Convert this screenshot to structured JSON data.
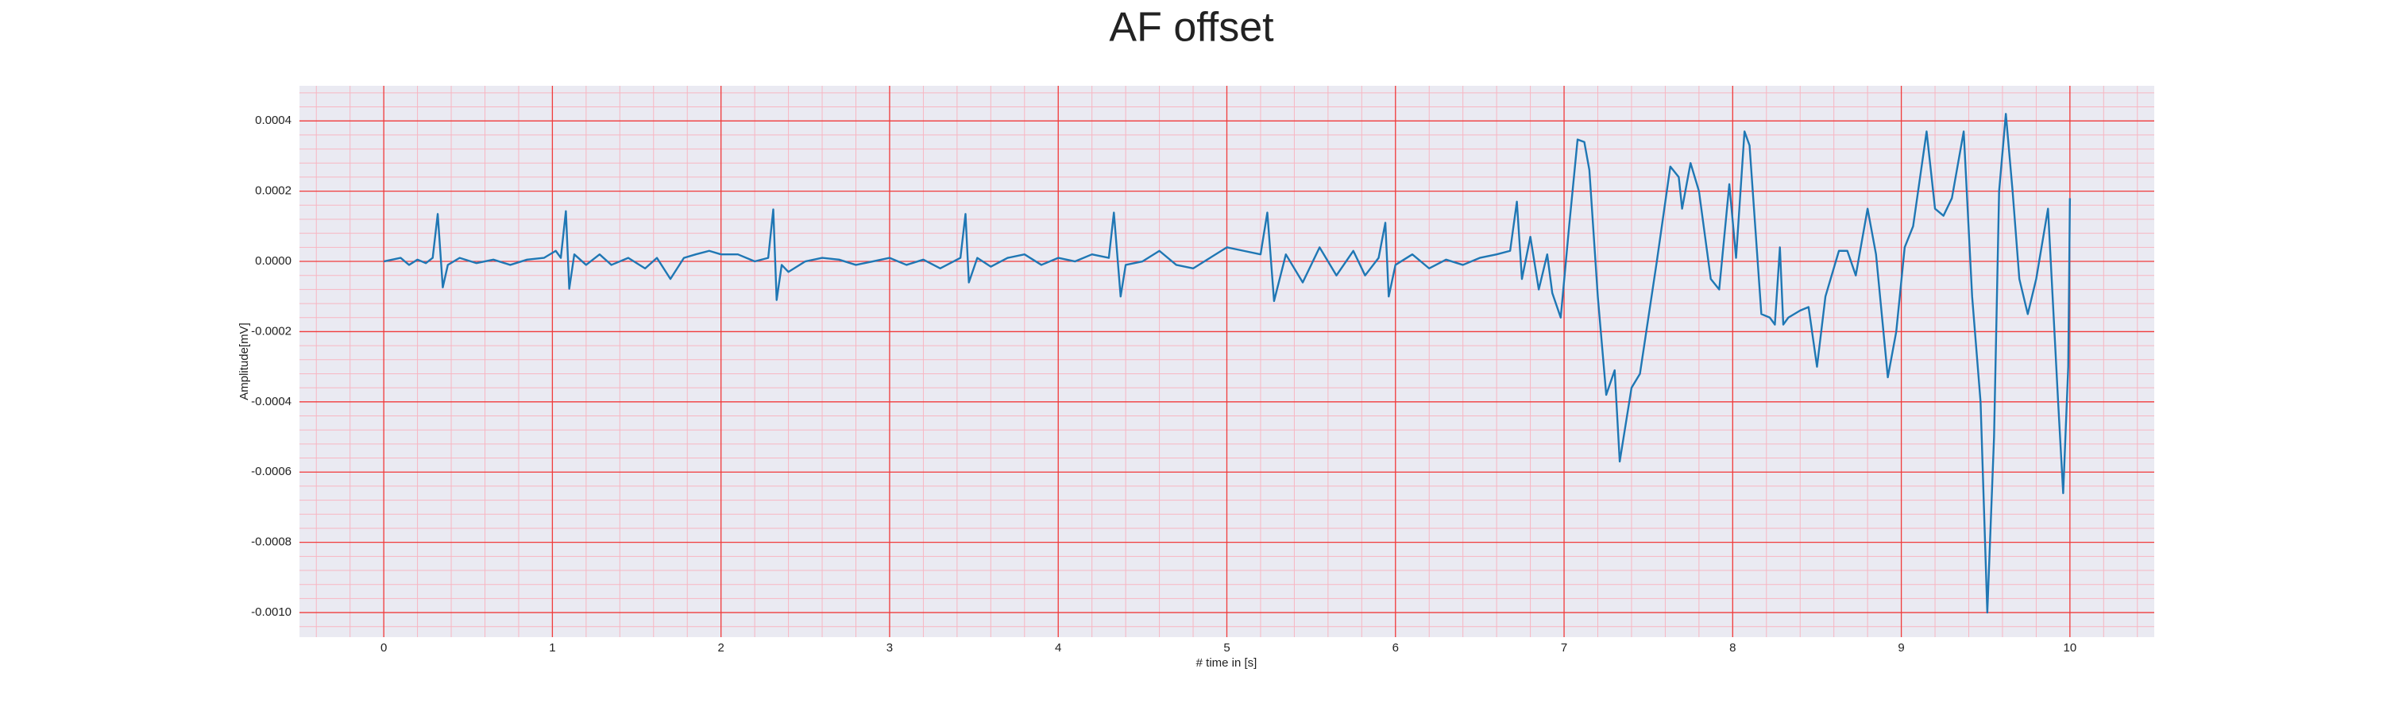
{
  "chart_data": {
    "type": "line",
    "title": "AF offset",
    "xlabel": "# time in [s]",
    "ylabel": "Amplitude[mV]",
    "x": [
      0,
      0.05,
      0.1,
      0.15,
      0.2,
      0.25,
      0.29,
      0.32,
      0.35,
      0.38,
      0.45,
      0.55,
      0.65,
      0.75,
      0.85,
      0.95,
      1.02,
      1.05,
      1.08,
      1.1,
      1.13,
      1.2,
      1.28,
      1.35,
      1.45,
      1.55,
      1.62,
      1.7,
      1.78,
      1.85,
      1.93,
      2.0,
      2.1,
      2.2,
      2.28,
      2.31,
      2.33,
      2.36,
      2.4,
      2.5,
      2.6,
      2.7,
      2.8,
      2.9,
      3.0,
      3.1,
      3.2,
      3.3,
      3.42,
      3.45,
      3.47,
      3.52,
      3.6,
      3.7,
      3.8,
      3.9,
      4.0,
      4.1,
      4.2,
      4.3,
      4.33,
      4.37,
      4.4,
      4.5,
      4.6,
      4.7,
      4.8,
      4.9,
      5.0,
      5.1,
      5.2,
      5.24,
      5.28,
      5.35,
      5.45,
      5.55,
      5.65,
      5.75,
      5.82,
      5.9,
      5.94,
      5.96,
      6.0,
      6.1,
      6.2,
      6.3,
      6.4,
      6.5,
      6.6,
      6.68,
      6.72,
      6.75,
      6.8,
      6.85,
      6.9,
      6.93,
      6.98,
      7.03,
      7.08,
      7.12,
      7.15,
      7.2,
      7.25,
      7.3,
      7.33,
      7.4,
      7.45,
      7.55,
      7.63,
      7.68,
      7.7,
      7.75,
      7.8,
      7.87,
      7.92,
      7.98,
      8.02,
      8.07,
      8.1,
      8.17,
      8.22,
      8.25,
      8.28,
      8.3,
      8.33,
      8.4,
      8.45,
      8.5,
      8.55,
      8.63,
      8.68,
      8.73,
      8.8,
      8.85,
      8.92,
      8.97,
      9.02,
      9.07,
      9.15,
      9.2,
      9.25,
      9.3,
      9.37,
      9.42,
      9.47,
      9.51,
      9.55,
      9.58,
      9.62,
      9.66,
      9.7,
      9.75,
      9.8,
      9.87,
      9.93,
      9.96,
      9.99,
      10.0
    ],
    "series": [
      {
        "color": "#1f77b4",
        "values": [
          0,
          5e-06,
          1e-05,
          -1e-05,
          5e-06,
          -5e-06,
          1e-05,
          0.000135,
          -7.4e-05,
          -1e-05,
          1e-05,
          -5e-06,
          5e-06,
          -1e-05,
          5e-06,
          1e-05,
          3e-05,
          1e-05,
          0.000143,
          -7.8e-05,
          2e-05,
          -1e-05,
          2e-05,
          -1e-05,
          1e-05,
          -2e-05,
          1e-05,
          -5e-05,
          1e-05,
          2e-05,
          3e-05,
          2e-05,
          2e-05,
          0,
          1e-05,
          0.000148,
          -0.00011,
          -1e-05,
          -3e-05,
          0,
          1e-05,
          5e-06,
          -1e-05,
          0,
          1e-05,
          -1e-05,
          5e-06,
          -2e-05,
          1e-05,
          0.000135,
          -6e-05,
          1e-05,
          -1.5e-05,
          1e-05,
          2e-05,
          -1e-05,
          1e-05,
          0,
          2e-05,
          1e-05,
          0.000139,
          -0.0001,
          -1e-05,
          0,
          3e-05,
          -1e-05,
          -2e-05,
          1e-05,
          4e-05,
          3e-05,
          2e-05,
          0.000139,
          -0.000113,
          2e-05,
          -6e-05,
          4e-05,
          -4e-05,
          3e-05,
          -4e-05,
          1e-05,
          0.00011,
          -0.0001,
          -1e-05,
          2e-05,
          -2e-05,
          5e-06,
          -1e-05,
          1e-05,
          2e-05,
          3e-05,
          0.00017,
          -5e-05,
          7e-05,
          -8e-05,
          2e-05,
          -9e-05,
          -0.00016,
          0.0001,
          0.000347,
          0.00034,
          0.00026,
          -0.0001,
          -0.00038,
          -0.00031,
          -0.00057,
          -0.00036,
          -0.00032,
          0,
          0.00027,
          0.00024,
          0.00015,
          0.00028,
          0.0002,
          -5e-05,
          -8e-05,
          0.00022,
          1e-05,
          0.00037,
          0.00033,
          -0.00015,
          -0.00016,
          -0.00018,
          4e-05,
          -0.00018,
          -0.00016,
          -0.00014,
          -0.00013,
          -0.0003,
          -0.0001,
          3e-05,
          3e-05,
          -4e-05,
          0.00015,
          2e-05,
          -0.00033,
          -0.0002,
          4e-05,
          0.0001,
          0.00037,
          0.00015,
          0.00013,
          0.00018,
          0.00037,
          -0.0001,
          -0.0004,
          -0.001,
          -0.0005,
          0.0002,
          0.00042,
          0.0002,
          -5e-05,
          -0.00015,
          -5e-05,
          0.00015,
          -0.0004,
          -0.00066,
          -0.0003,
          0.00018
        ]
      }
    ],
    "xlim": [
      -0.5,
      10.5
    ],
    "xticks": [
      0,
      1,
      2,
      3,
      4,
      5,
      6,
      7,
      8,
      9,
      10
    ],
    "ylim": [
      -0.00107,
      0.0005
    ],
    "yticks": [
      {
        "value": -0.001,
        "label": "-0.0010"
      },
      -0.0008,
      -0.0006,
      -0.0004,
      -0.0002,
      {
        "value": 0,
        "label": "0.0000"
      },
      0.0002,
      0.0004
    ],
    "grid": true,
    "grid_color": "#f03c3c",
    "minor_grid": true,
    "minor_grid_color": "#f7b6c2",
    "background": "#eaeaf2"
  }
}
